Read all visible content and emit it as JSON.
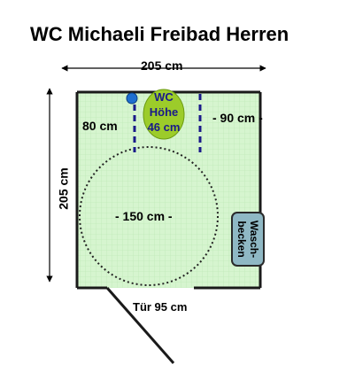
{
  "title": "WC Michaeli Freibad Herren",
  "dimensions": {
    "width_label": "205 cm",
    "depth_label": "205 cm",
    "toilet_side_label": "80 cm",
    "free_side_label": "- 90 cm -",
    "turning_circle_label": "- 150 cm -",
    "door_label": "Tür 95 cm"
  },
  "toilet": {
    "line1": "WC",
    "line2": "Höhe",
    "line3": "46 cm"
  },
  "sink": {
    "line1": "Wasch-",
    "line2": "becken"
  },
  "colors": {
    "floor": "#d6f5cf",
    "wall": "#1a1a1a",
    "toilet": "#9ccc2a",
    "sink": "#8fb8c4",
    "grab_bar": "#1a1a8a",
    "flush_button": "#1e6fd0"
  }
}
